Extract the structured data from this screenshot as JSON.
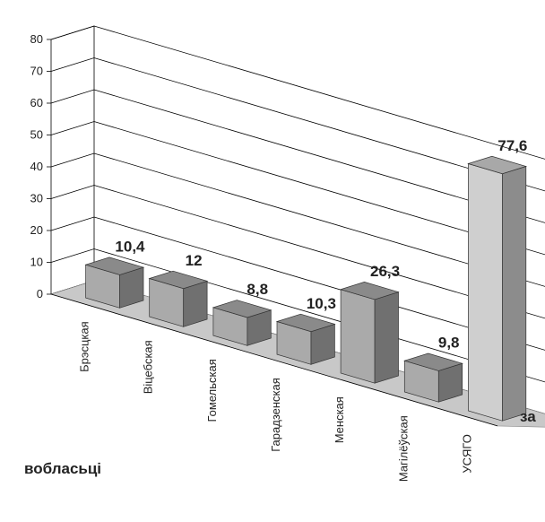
{
  "chart_data": {
    "type": "bar",
    "title": "",
    "xlabel": "вобласьці",
    "ylabel": "",
    "side_label": "за",
    "categories": [
      "Брэсцкая",
      "Віцебская",
      "Гомельская",
      "Гарадзенская",
      "Менская",
      "Магілёўская",
      "УСЯГО"
    ],
    "values": [
      10.4,
      12,
      8.8,
      10.3,
      26.3,
      9.8,
      77.6
    ],
    "value_labels": [
      "10,4",
      "12",
      "8,8",
      "10,3",
      "26,3",
      "9,8",
      "77,6"
    ],
    "ylim": [
      0,
      80
    ],
    "yticks": [
      "0",
      "10",
      "20",
      "30",
      "40",
      "50",
      "60",
      "70",
      "80"
    ],
    "grid": true,
    "style": "3d-columns",
    "colors": {
      "bar_front": "#aaaaaa",
      "bar_top": "#8a8a8a",
      "bar_side": "#707070",
      "total_front": "#cfcfcf",
      "total_top": "#a8a8a8",
      "total_side": "#8c8c8c",
      "floor": "#c8c8c8",
      "grid": "#000000"
    }
  }
}
